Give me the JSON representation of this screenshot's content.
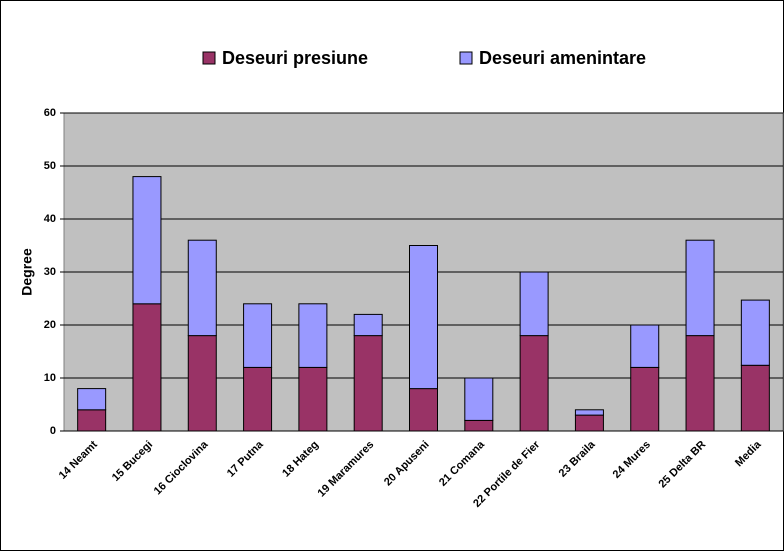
{
  "chart_data": {
    "type": "stacked_bar",
    "categories": [
      "14 Neamt",
      "15 Bucegi",
      "16 Cioclovina",
      "17 Putna",
      "18 Hateg",
      "19 Maramures",
      "20 Apuseni",
      "21 Comana",
      "22 Portile de Fier",
      "23 Braila",
      "24 Mures",
      "25 Delta BR",
      "Media"
    ],
    "series": [
      {
        "name": "Deseuri presiune",
        "color": "#993366",
        "values": [
          4,
          24,
          18,
          12,
          12,
          18,
          8,
          2,
          18,
          3,
          12,
          18,
          12.4
        ]
      },
      {
        "name": "Deseuri amenintare",
        "color": "#9999ff",
        "values": [
          4,
          24,
          18,
          12,
          12,
          4,
          27,
          8,
          12,
          1,
          8,
          18,
          12.3
        ]
      }
    ],
    "y_label": "Degree",
    "ylim": [
      0,
      60
    ],
    "yticks": [
      0,
      10,
      20,
      30,
      40,
      50,
      60
    ],
    "grid": true,
    "legend": "top"
  }
}
